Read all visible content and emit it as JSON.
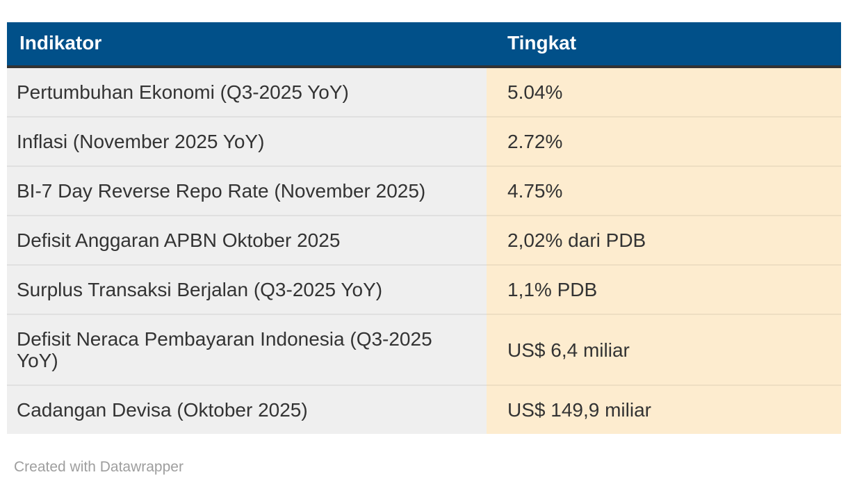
{
  "chart_data": {
    "type": "table",
    "columns": [
      "Indikator",
      "Tingkat"
    ],
    "rows": [
      [
        "Pertumbuhan Ekonomi (Q3-2025 YoY)",
        "5.04%"
      ],
      [
        "Inflasi (November 2025 YoY)",
        "2.72%"
      ],
      [
        "BI-7 Day Reverse Repo Rate (November 2025)",
        "4.75%"
      ],
      [
        "Defisit Anggaran APBN Oktober 2025",
        "2,02% dari PDB"
      ],
      [
        "Surplus Transaksi Berjalan (Q3-2025 YoY)",
        "1,1% PDB"
      ],
      [
        "Defisit Neraca Pembayaran Indonesia (Q3-2025 YoY)",
        "US$ 6,4 miliar"
      ],
      [
        "Cadangan Devisa (Oktober 2025)",
        "US$ 149,9 miliar"
      ]
    ],
    "legend_position": "none",
    "grid": false
  },
  "table": {
    "headers": {
      "indikator": "Indikator",
      "tingkat": "Tingkat"
    },
    "rows": [
      {
        "indikator": "Pertumbuhan Ekonomi (Q3-2025 YoY)",
        "tingkat": "5.04%"
      },
      {
        "indikator": "Inflasi (November 2025 YoY)",
        "tingkat": "2.72%"
      },
      {
        "indikator": "BI-7 Day Reverse Repo Rate (November 2025)",
        "tingkat": "4.75%"
      },
      {
        "indikator": "Defisit Anggaran APBN Oktober 2025",
        "tingkat": "2,02% dari PDB"
      },
      {
        "indikator": "Surplus Transaksi Berjalan (Q3-2025 YoY)",
        "tingkat": "1,1% PDB"
      },
      {
        "indikator": "Defisit Neraca Pembayaran Indonesia (Q3-2025 YoY)",
        "tingkat": "US$ 6,4 miliar"
      },
      {
        "indikator": "Cadangan Devisa (Oktober 2025)",
        "tingkat": "US$ 149,9 miliar"
      }
    ]
  },
  "footer": {
    "credit": "Created with Datawrapper"
  },
  "colors": {
    "header_bg": "#015089",
    "header_text": "#ffffff",
    "header_border": "#333333",
    "indikator_col_bg": "#efefef",
    "tingkat_col_bg": "#fdeccf",
    "body_text": "#333333",
    "credit_text": "#9e9e9e"
  }
}
